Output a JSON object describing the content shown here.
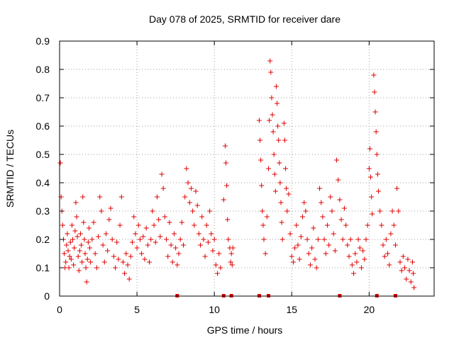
{
  "chart_data": {
    "type": "scatter",
    "title": "Day 078 of 2025, SRMTID for receiver dare",
    "xlabel": "GPS time / hours",
    "ylabel": "SRMTID / TECUs",
    "xlim": [
      0,
      24.2
    ],
    "ylim": [
      0,
      0.9
    ],
    "xticks": [
      "0",
      "5",
      "10",
      "15",
      "20"
    ],
    "xtick_values": [
      0,
      5,
      10,
      15,
      20
    ],
    "yticks": [
      "0",
      "0.1",
      "0.2",
      "0.3",
      "0.4",
      "0.5",
      "0.6",
      "0.7",
      "0.8",
      "0.9"
    ],
    "ytick_values": [
      0,
      0.1,
      0.2,
      0.3,
      0.4,
      0.5,
      0.6,
      0.7,
      0.8,
      0.9
    ],
    "grid": true,
    "marker": "plus",
    "color": "#e00000",
    "series": [
      {
        "name": "SRMTID",
        "points": [
          [
            0.05,
            0.47
          ],
          [
            0.1,
            0.35
          ],
          [
            0.15,
            0.3
          ],
          [
            0.2,
            0.25
          ],
          [
            0.25,
            0.2
          ],
          [
            0.3,
            0.15
          ],
          [
            0.35,
            0.1
          ],
          [
            0.4,
            0.12
          ],
          [
            0.45,
            0.18
          ],
          [
            0.5,
            0.22
          ],
          [
            0.55,
            0.16
          ],
          [
            0.6,
            0.1
          ],
          [
            0.65,
            0.14
          ],
          [
            0.7,
            0.19
          ],
          [
            0.75,
            0.13
          ],
          [
            0.8,
            0.25
          ],
          [
            0.85,
            0.2
          ],
          [
            0.9,
            0.11
          ],
          [
            0.95,
            0.17
          ],
          [
            1.0,
            0.23
          ],
          [
            1.05,
            0.33
          ],
          [
            1.1,
            0.28
          ],
          [
            1.15,
            0.21
          ],
          [
            1.2,
            0.14
          ],
          [
            1.25,
            0.09
          ],
          [
            1.3,
            0.16
          ],
          [
            1.35,
            0.22
          ],
          [
            1.4,
            0.18
          ],
          [
            1.45,
            0.12
          ],
          [
            1.5,
            0.35
          ],
          [
            1.55,
            0.26
          ],
          [
            1.6,
            0.2
          ],
          [
            1.65,
            0.15
          ],
          [
            1.7,
            0.1
          ],
          [
            1.75,
            0.05
          ],
          [
            1.8,
            0.13
          ],
          [
            1.85,
            0.19
          ],
          [
            1.9,
            0.24
          ],
          [
            1.95,
            0.17
          ],
          [
            2.0,
            0.12
          ],
          [
            2.1,
            0.2
          ],
          [
            2.2,
            0.26
          ],
          [
            2.3,
            0.15
          ],
          [
            2.4,
            0.1
          ],
          [
            2.5,
            0.21
          ],
          [
            2.6,
            0.35
          ],
          [
            2.7,
            0.3
          ],
          [
            2.8,
            0.18
          ],
          [
            2.9,
            0.12
          ],
          [
            3.0,
            0.22
          ],
          [
            3.1,
            0.16
          ],
          [
            3.2,
            0.27
          ],
          [
            3.3,
            0.31
          ],
          [
            3.4,
            0.2
          ],
          [
            3.5,
            0.14
          ],
          [
            3.6,
            0.1
          ],
          [
            3.7,
            0.19
          ],
          [
            3.8,
            0.13
          ],
          [
            3.9,
            0.25
          ],
          [
            4.0,
            0.35
          ],
          [
            4.1,
            0.12
          ],
          [
            4.2,
            0.08
          ],
          [
            4.3,
            0.15
          ],
          [
            4.4,
            0.11
          ],
          [
            4.5,
            0.06
          ],
          [
            4.6,
            0.14
          ],
          [
            4.7,
            0.19
          ],
          [
            4.8,
            0.28
          ],
          [
            4.9,
            0.22
          ],
          [
            5.0,
            0.17
          ],
          [
            5.1,
            0.25
          ],
          [
            5.2,
            0.2
          ],
          [
            5.3,
            0.15
          ],
          [
            5.4,
            0.21
          ],
          [
            5.5,
            0.13
          ],
          [
            5.6,
            0.24
          ],
          [
            5.7,
            0.18
          ],
          [
            5.8,
            0.12
          ],
          [
            5.9,
            0.2
          ],
          [
            6.0,
            0.3
          ],
          [
            6.1,
            0.25
          ],
          [
            6.2,
            0.19
          ],
          [
            6.3,
            0.35
          ],
          [
            6.4,
            0.27
          ],
          [
            6.5,
            0.21
          ],
          [
            6.6,
            0.43
          ],
          [
            6.7,
            0.38
          ],
          [
            6.8,
            0.28
          ],
          [
            6.9,
            0.2
          ],
          [
            7.0,
            0.14
          ],
          [
            7.1,
            0.26
          ],
          [
            7.2,
            0.18
          ],
          [
            7.3,
            0.12
          ],
          [
            7.4,
            0.22
          ],
          [
            7.5,
            0.17
          ],
          [
            7.6,
            0.11
          ],
          [
            7.7,
            0.15
          ],
          [
            7.8,
            0.2
          ],
          [
            7.9,
            0.26
          ],
          [
            8.0,
            0.18
          ],
          [
            8.1,
            0.35
          ],
          [
            8.2,
            0.45
          ],
          [
            8.3,
            0.4
          ],
          [
            8.4,
            0.33
          ],
          [
            8.5,
            0.38
          ],
          [
            8.6,
            0.3
          ],
          [
            8.7,
            0.25
          ],
          [
            8.8,
            0.37
          ],
          [
            8.9,
            0.32
          ],
          [
            9.0,
            0.22
          ],
          [
            9.1,
            0.18
          ],
          [
            9.2,
            0.28
          ],
          [
            9.3,
            0.2
          ],
          [
            9.4,
            0.14
          ],
          [
            9.5,
            0.25
          ],
          [
            9.6,
            0.19
          ],
          [
            9.7,
            0.3
          ],
          [
            9.8,
            0.22
          ],
          [
            9.9,
            0.16
          ],
          [
            10.0,
            0.2
          ],
          [
            10.1,
            0.11
          ],
          [
            10.2,
            0.08
          ],
          [
            10.3,
            0.15
          ],
          [
            10.4,
            0.1
          ],
          [
            10.6,
            0.34
          ],
          [
            10.7,
            0.53
          ],
          [
            10.75,
            0.47
          ],
          [
            10.8,
            0.39
          ],
          [
            10.85,
            0.27
          ],
          [
            10.9,
            0.2
          ],
          [
            11.0,
            0.17
          ],
          [
            11.05,
            0.12
          ],
          [
            11.1,
            0.15
          ],
          [
            11.15,
            0.11
          ],
          [
            11.2,
            0.17
          ],
          [
            12.9,
            0.62
          ],
          [
            12.95,
            0.55
          ],
          [
            13.0,
            0.48
          ],
          [
            13.05,
            0.39
          ],
          [
            13.1,
            0.3
          ],
          [
            13.15,
            0.25
          ],
          [
            13.2,
            0.2
          ],
          [
            13.3,
            0.15
          ],
          [
            13.4,
            0.28
          ],
          [
            13.5,
            0.45
          ],
          [
            13.55,
            0.62
          ],
          [
            13.6,
            0.83
          ],
          [
            13.65,
            0.79
          ],
          [
            13.7,
            0.7
          ],
          [
            13.75,
            0.64
          ],
          [
            13.8,
            0.58
          ],
          [
            13.85,
            0.5
          ],
          [
            13.9,
            0.43
          ],
          [
            13.95,
            0.37
          ],
          [
            14.0,
            0.74
          ],
          [
            14.05,
            0.68
          ],
          [
            14.1,
            0.6
          ],
          [
            14.15,
            0.55
          ],
          [
            14.2,
            0.47
          ],
          [
            14.25,
            0.4
          ],
          [
            14.3,
            0.33
          ],
          [
            14.35,
            0.26
          ],
          [
            14.4,
            0.2
          ],
          [
            14.5,
            0.61
          ],
          [
            14.55,
            0.55
          ],
          [
            14.6,
            0.45
          ],
          [
            14.65,
            0.38
          ],
          [
            14.7,
            0.3
          ],
          [
            14.8,
            0.36
          ],
          [
            14.9,
            0.22
          ],
          [
            15.0,
            0.14
          ],
          [
            15.1,
            0.12
          ],
          [
            15.2,
            0.17
          ],
          [
            15.3,
            0.25
          ],
          [
            15.4,
            0.18
          ],
          [
            15.5,
            0.13
          ],
          [
            15.6,
            0.21
          ],
          [
            15.7,
            0.28
          ],
          [
            15.8,
            0.33
          ],
          [
            15.9,
            0.3
          ],
          [
            16.0,
            0.2
          ],
          [
            16.1,
            0.15
          ],
          [
            16.2,
            0.11
          ],
          [
            16.3,
            0.17
          ],
          [
            16.4,
            0.24
          ],
          [
            16.5,
            0.13
          ],
          [
            16.6,
            0.1
          ],
          [
            16.7,
            0.2
          ],
          [
            16.8,
            0.38
          ],
          [
            16.9,
            0.33
          ],
          [
            17.0,
            0.28
          ],
          [
            17.1,
            0.2
          ],
          [
            17.2,
            0.15
          ],
          [
            17.3,
            0.25
          ],
          [
            17.4,
            0.18
          ],
          [
            17.5,
            0.35
          ],
          [
            17.6,
            0.3
          ],
          [
            17.7,
            0.22
          ],
          [
            17.8,
            0.16
          ],
          [
            17.9,
            0.48
          ],
          [
            18.0,
            0.41
          ],
          [
            18.1,
            0.34
          ],
          [
            18.2,
            0.27
          ],
          [
            18.3,
            0.2
          ],
          [
            18.4,
            0.31
          ],
          [
            18.5,
            0.25
          ],
          [
            18.6,
            0.18
          ],
          [
            18.7,
            0.14
          ],
          [
            18.8,
            0.2
          ],
          [
            18.9,
            0.11
          ],
          [
            19.0,
            0.08
          ],
          [
            19.1,
            0.15
          ],
          [
            19.2,
            0.12
          ],
          [
            19.3,
            0.2
          ],
          [
            19.4,
            0.17
          ],
          [
            19.5,
            0.1
          ],
          [
            19.6,
            0.16
          ],
          [
            19.7,
            0.13
          ],
          [
            19.8,
            0.2
          ],
          [
            19.9,
            0.25
          ],
          [
            20.0,
            0.45
          ],
          [
            20.05,
            0.52
          ],
          [
            20.1,
            0.42
          ],
          [
            20.15,
            0.35
          ],
          [
            20.2,
            0.29
          ],
          [
            20.3,
            0.78
          ],
          [
            20.35,
            0.72
          ],
          [
            20.4,
            0.65
          ],
          [
            20.45,
            0.58
          ],
          [
            20.5,
            0.5
          ],
          [
            20.55,
            0.43
          ],
          [
            20.6,
            0.37
          ],
          [
            20.7,
            0.3
          ],
          [
            20.8,
            0.25
          ],
          [
            20.9,
            0.18
          ],
          [
            21.0,
            0.14
          ],
          [
            21.1,
            0.2
          ],
          [
            21.2,
            0.15
          ],
          [
            21.3,
            0.11
          ],
          [
            21.4,
            0.22
          ],
          [
            21.5,
            0.3
          ],
          [
            21.6,
            0.25
          ],
          [
            21.7,
            0.18
          ],
          [
            21.8,
            0.38
          ],
          [
            21.9,
            0.3
          ],
          [
            22.0,
            0.12
          ],
          [
            22.1,
            0.09
          ],
          [
            22.2,
            0.14
          ],
          [
            22.3,
            0.1
          ],
          [
            22.4,
            0.06
          ],
          [
            22.5,
            0.13
          ],
          [
            22.6,
            0.09
          ],
          [
            22.7,
            0.05
          ],
          [
            22.8,
            0.12
          ],
          [
            22.85,
            0.08
          ],
          [
            22.9,
            0.03
          ]
        ]
      }
    ],
    "data_gaps_x": [
      7.6,
      10.6,
      11.1,
      12.9,
      13.5,
      18.1,
      20.5,
      21.7
    ]
  }
}
